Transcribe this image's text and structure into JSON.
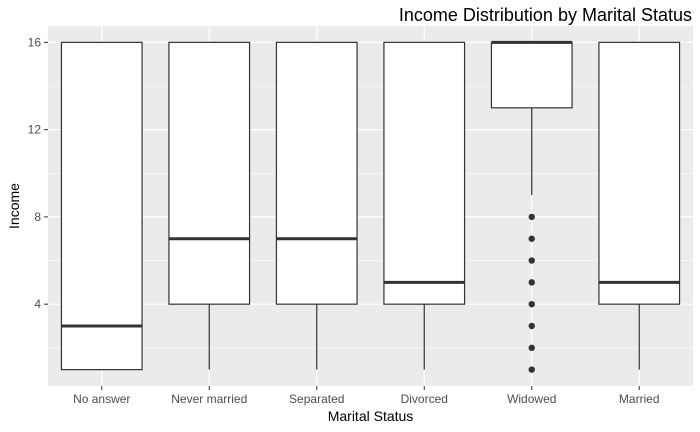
{
  "chart_data": {
    "type": "box",
    "title": "Income Distribution by Marital Status",
    "xlabel": "Marital Status",
    "ylabel": "Income",
    "ylim": [
      0.25,
      16.75
    ],
    "yticks": [
      4,
      8,
      12,
      16
    ],
    "grid": true,
    "categories": [
      "No answer",
      "Never married",
      "Separated",
      "Divorced",
      "Widowed",
      "Married"
    ],
    "boxes": [
      {
        "category": "No answer",
        "min": 1,
        "q1": 1,
        "median": 3,
        "q3": 16,
        "max": 16,
        "outliers": []
      },
      {
        "category": "Never married",
        "min": 1,
        "q1": 4,
        "median": 7,
        "q3": 16,
        "max": 16,
        "outliers": []
      },
      {
        "category": "Separated",
        "min": 1,
        "q1": 4,
        "median": 7,
        "q3": 16,
        "max": 16,
        "outliers": []
      },
      {
        "category": "Divorced",
        "min": 1,
        "q1": 4,
        "median": 5,
        "q3": 16,
        "max": 16,
        "outliers": []
      },
      {
        "category": "Widowed",
        "min": 9,
        "q1": 13,
        "median": 16,
        "q3": 16,
        "max": 16,
        "outliers": [
          1,
          2,
          3,
          4,
          5,
          6,
          7,
          8
        ]
      },
      {
        "category": "Married",
        "min": 1,
        "q1": 4,
        "median": 5,
        "q3": 16,
        "max": 16,
        "outliers": []
      }
    ],
    "colors": {
      "panel": "#EBEBEB",
      "grid": "#FFFFFF",
      "box_fill": "#FFFFFF",
      "box_stroke": "#333333",
      "tick_text": "#4D4D4D"
    }
  }
}
